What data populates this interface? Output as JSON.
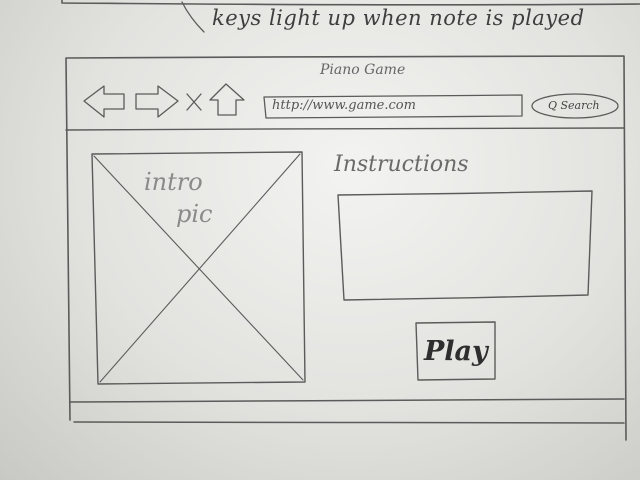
{
  "annotation": {
    "text": "keys light up when note is played"
  },
  "browser": {
    "title": "Piano Game",
    "url": "http://www.game.com",
    "search_label": "Q Search",
    "nav_icons": [
      "back-arrow-icon",
      "forward-arrow-icon",
      "close-x-icon",
      "up-arrow-icon"
    ]
  },
  "main": {
    "intro_pic_line1": "intro",
    "intro_pic_line2": "pic",
    "instructions_label": "Instructions",
    "play_label": "Play"
  }
}
